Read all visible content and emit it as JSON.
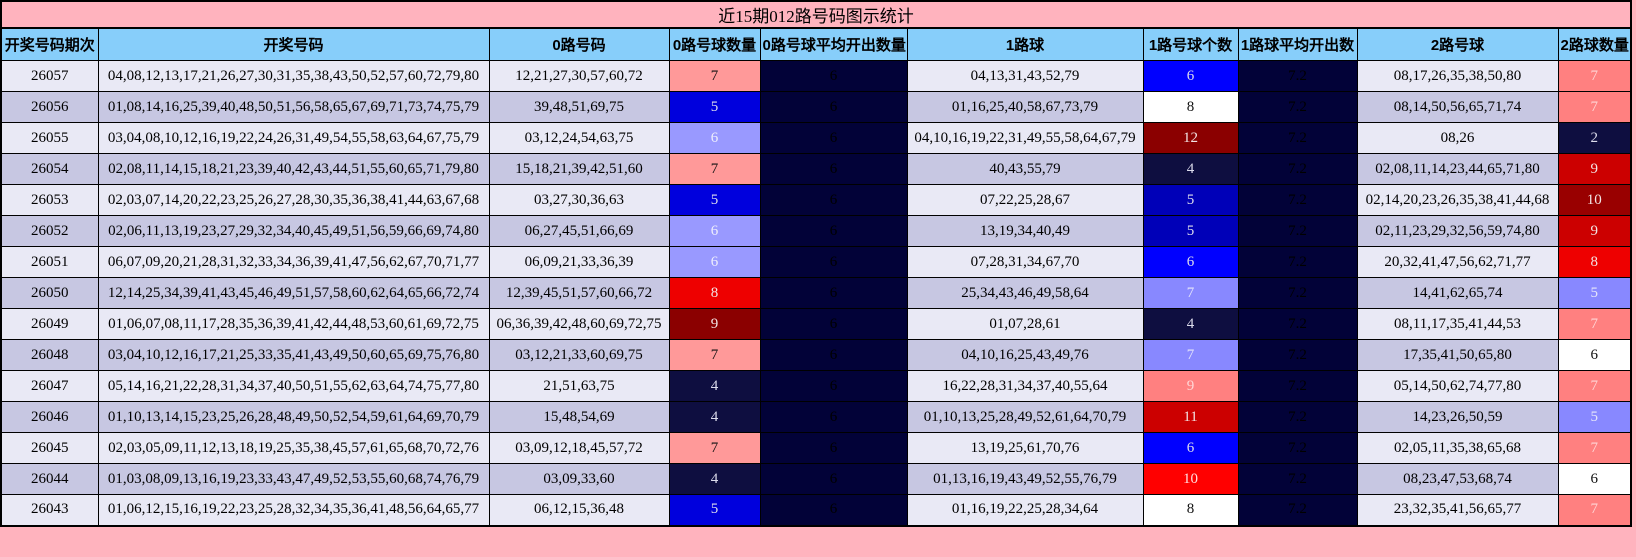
{
  "title": "近15期012路号码图示统计",
  "columns": [
    "开奖号码期次",
    "开奖号码",
    "0路号码",
    "0路号球数量",
    "0路号球平均开出数量",
    "1路球",
    "1路号球个数",
    "1路球平均开出数",
    "2路号球",
    "2路球数量"
  ],
  "colors": {
    "page_background": "#FFB3BE",
    "title_background": "#FFB3BE",
    "header_background": "#87CEFA",
    "row_light": "#E9E9F5",
    "row_dark": "#C7C7E2",
    "average_cell_background": "#020238",
    "average_cell_text": "#C9C9DF",
    "border": "#000000"
  },
  "rows": [
    {
      "period": "26057",
      "numbers": "04,08,12,13,17,21,26,27,30,31,35,38,43,50,52,57,60,72,79,80",
      "road0": {
        "nums": "12,21,27,30,57,60,72",
        "count": "7",
        "count_bg": "#FF9999",
        "count_fg": "#111111",
        "avg": "6"
      },
      "road1": {
        "nums": "04,13,31,43,52,79",
        "count": "6",
        "count_bg": "#0000FF",
        "count_fg": "#DCDCEC",
        "avg": "7.2"
      },
      "road2": {
        "nums": "08,17,26,35,38,50,80",
        "count": "7",
        "count_bg": "#FF8080",
        "count_fg": "#FFD6D6"
      }
    },
    {
      "period": "26056",
      "numbers": "01,08,14,16,25,39,40,48,50,51,56,58,65,67,69,71,73,74,75,79",
      "road0": {
        "nums": "39,48,51,69,75",
        "count": "5",
        "count_bg": "#0000DD",
        "count_fg": "#DCDCEC",
        "avg": "6"
      },
      "road1": {
        "nums": "01,16,25,40,58,67,73,79",
        "count": "8",
        "count_bg": "#FFFFFF",
        "count_fg": "#111111",
        "avg": "7.2"
      },
      "road2": {
        "nums": "08,14,50,56,65,71,74",
        "count": "7",
        "count_bg": "#FF8080",
        "count_fg": "#FFD6D6"
      }
    },
    {
      "period": "26055",
      "numbers": "03,04,08,10,12,16,19,22,24,26,31,49,54,55,58,63,64,67,75,79",
      "road0": {
        "nums": "03,12,24,54,63,75",
        "count": "6",
        "count_bg": "#9999FF",
        "count_fg": "#EEEEFC",
        "avg": "6"
      },
      "road1": {
        "nums": "04,10,16,19,22,31,49,55,58,64,67,79",
        "count": "12",
        "count_bg": "#8B0000",
        "count_fg": "#F2E4E4",
        "avg": "7.2"
      },
      "road2": {
        "nums": "08,26",
        "count": "2",
        "count_bg": "#0E0E40",
        "count_fg": "#DCDCEC"
      }
    },
    {
      "period": "26054",
      "numbers": "02,08,11,14,15,18,21,23,39,40,42,43,44,51,55,60,65,71,79,80",
      "road0": {
        "nums": "15,18,21,39,42,51,60",
        "count": "7",
        "count_bg": "#FF9999",
        "count_fg": "#111111",
        "avg": "6"
      },
      "road1": {
        "nums": "40,43,55,79",
        "count": "4",
        "count_bg": "#0E0E40",
        "count_fg": "#DCDCEC",
        "avg": "7.2"
      },
      "road2": {
        "nums": "02,08,11,14,23,44,65,71,80",
        "count": "9",
        "count_bg": "#CC0000",
        "count_fg": "#F2E4E4"
      }
    },
    {
      "period": "26053",
      "numbers": "02,03,07,14,20,22,23,25,26,27,28,30,35,36,38,41,44,63,67,68",
      "road0": {
        "nums": "03,27,30,36,63",
        "count": "5",
        "count_bg": "#0000DD",
        "count_fg": "#DCDCEC",
        "avg": "6"
      },
      "road1": {
        "nums": "07,22,25,28,67",
        "count": "5",
        "count_bg": "#0000B8",
        "count_fg": "#DCDCEC",
        "avg": "7.2"
      },
      "road2": {
        "nums": "02,14,20,23,26,35,38,41,44,68",
        "count": "10",
        "count_bg": "#990000",
        "count_fg": "#F2E4E4"
      }
    },
    {
      "period": "26052",
      "numbers": "02,06,11,13,19,23,27,29,32,34,40,45,49,51,56,59,66,69,74,80",
      "road0": {
        "nums": "06,27,45,51,66,69",
        "count": "6",
        "count_bg": "#9999FF",
        "count_fg": "#EEEEFC",
        "avg": "6"
      },
      "road1": {
        "nums": "13,19,34,40,49",
        "count": "5",
        "count_bg": "#0000B8",
        "count_fg": "#DCDCEC",
        "avg": "7.2"
      },
      "road2": {
        "nums": "02,11,23,29,32,56,59,74,80",
        "count": "9",
        "count_bg": "#CC0000",
        "count_fg": "#F2E4E4"
      }
    },
    {
      "period": "26051",
      "numbers": "06,07,09,20,21,28,31,32,33,34,36,39,41,47,56,62,67,70,71,77",
      "road0": {
        "nums": "06,09,21,33,36,39",
        "count": "6",
        "count_bg": "#9999FF",
        "count_fg": "#EEEEFC",
        "avg": "6"
      },
      "road1": {
        "nums": "07,28,31,34,67,70",
        "count": "6",
        "count_bg": "#0000FF",
        "count_fg": "#DCDCEC",
        "avg": "7.2"
      },
      "road2": {
        "nums": "20,32,41,47,56,62,71,77",
        "count": "8",
        "count_bg": "#EE0000",
        "count_fg": "#F2E4E4"
      }
    },
    {
      "period": "26050",
      "numbers": "12,14,25,34,39,41,43,45,46,49,51,57,58,60,62,64,65,66,72,74",
      "road0": {
        "nums": "12,39,45,51,57,60,66,72",
        "count": "8",
        "count_bg": "#EE0000",
        "count_fg": "#F2E4E4",
        "avg": "6"
      },
      "road1": {
        "nums": "25,34,43,46,49,58,64",
        "count": "7",
        "count_bg": "#8888FF",
        "count_fg": "#E6E6FA",
        "avg": "7.2"
      },
      "road2": {
        "nums": "14,41,62,65,74",
        "count": "5",
        "count_bg": "#8888FF",
        "count_fg": "#E6E6FA"
      }
    },
    {
      "period": "26049",
      "numbers": "01,06,07,08,11,17,28,35,36,39,41,42,44,48,53,60,61,69,72,75",
      "road0": {
        "nums": "06,36,39,42,48,60,69,72,75",
        "count": "9",
        "count_bg": "#8B0000",
        "count_fg": "#F2E4E4",
        "avg": "6"
      },
      "road1": {
        "nums": "01,07,28,61",
        "count": "4",
        "count_bg": "#0E0E40",
        "count_fg": "#DCDCEC",
        "avg": "7.2"
      },
      "road2": {
        "nums": "08,11,17,35,41,44,53",
        "count": "7",
        "count_bg": "#FF8080",
        "count_fg": "#FFD6D6"
      }
    },
    {
      "period": "26048",
      "numbers": "03,04,10,12,16,17,21,25,33,35,41,43,49,50,60,65,69,75,76,80",
      "road0": {
        "nums": "03,12,21,33,60,69,75",
        "count": "7",
        "count_bg": "#FF9999",
        "count_fg": "#111111",
        "avg": "6"
      },
      "road1": {
        "nums": "04,10,16,25,43,49,76",
        "count": "7",
        "count_bg": "#8888FF",
        "count_fg": "#E6E6FA",
        "avg": "7.2"
      },
      "road2": {
        "nums": "17,35,41,50,65,80",
        "count": "6",
        "count_bg": "#FFFFFF",
        "count_fg": "#111111"
      }
    },
    {
      "period": "26047",
      "numbers": "05,14,16,21,22,28,31,34,37,40,50,51,55,62,63,64,74,75,77,80",
      "road0": {
        "nums": "21,51,63,75",
        "count": "4",
        "count_bg": "#0E0E40",
        "count_fg": "#DCDCEC",
        "avg": "6"
      },
      "road1": {
        "nums": "16,22,28,31,34,37,40,55,64",
        "count": "9",
        "count_bg": "#FF8080",
        "count_fg": "#FFD6D6",
        "avg": "7.2"
      },
      "road2": {
        "nums": "05,14,50,62,74,77,80",
        "count": "7",
        "count_bg": "#FF8080",
        "count_fg": "#FFD6D6"
      }
    },
    {
      "period": "26046",
      "numbers": "01,10,13,14,15,23,25,26,28,48,49,50,52,54,59,61,64,69,70,79",
      "road0": {
        "nums": "15,48,54,69",
        "count": "4",
        "count_bg": "#0E0E40",
        "count_fg": "#DCDCEC",
        "avg": "6"
      },
      "road1": {
        "nums": "01,10,13,25,28,49,52,61,64,70,79",
        "count": "11",
        "count_bg": "#CC0000",
        "count_fg": "#F2E4E4",
        "avg": "7.2"
      },
      "road2": {
        "nums": "14,23,26,50,59",
        "count": "5",
        "count_bg": "#8888FF",
        "count_fg": "#E6E6FA"
      }
    },
    {
      "period": "26045",
      "numbers": "02,03,05,09,11,12,13,18,19,25,35,38,45,57,61,65,68,70,72,76",
      "road0": {
        "nums": "03,09,12,18,45,57,72",
        "count": "7",
        "count_bg": "#FF9999",
        "count_fg": "#111111",
        "avg": "6"
      },
      "road1": {
        "nums": "13,19,25,61,70,76",
        "count": "6",
        "count_bg": "#0000FF",
        "count_fg": "#DCDCEC",
        "avg": "7.2"
      },
      "road2": {
        "nums": "02,05,11,35,38,65,68",
        "count": "7",
        "count_bg": "#FF8080",
        "count_fg": "#FFD6D6"
      }
    },
    {
      "period": "26044",
      "numbers": "01,03,08,09,13,16,19,23,33,43,47,49,52,53,55,60,68,74,76,79",
      "road0": {
        "nums": "03,09,33,60",
        "count": "4",
        "count_bg": "#0E0E40",
        "count_fg": "#DCDCEC",
        "avg": "6"
      },
      "road1": {
        "nums": "01,13,16,19,43,49,52,55,76,79",
        "count": "10",
        "count_bg": "#FF0000",
        "count_fg": "#FFE0E0",
        "avg": "7.2"
      },
      "road2": {
        "nums": "08,23,47,53,68,74",
        "count": "6",
        "count_bg": "#FFFFFF",
        "count_fg": "#111111"
      }
    },
    {
      "period": "26043",
      "numbers": "01,06,12,15,16,19,22,23,25,28,32,34,35,36,41,48,56,64,65,77",
      "road0": {
        "nums": "06,12,15,36,48",
        "count": "5",
        "count_bg": "#0000DD",
        "count_fg": "#DCDCEC",
        "avg": "6"
      },
      "road1": {
        "nums": "01,16,19,22,25,28,34,64",
        "count": "8",
        "count_bg": "#FFFFFF",
        "count_fg": "#111111",
        "avg": "7.2"
      },
      "road2": {
        "nums": "23,32,35,41,56,65,77",
        "count": "7",
        "count_bg": "#FF8080",
        "count_fg": "#FFD6D6"
      }
    }
  ]
}
